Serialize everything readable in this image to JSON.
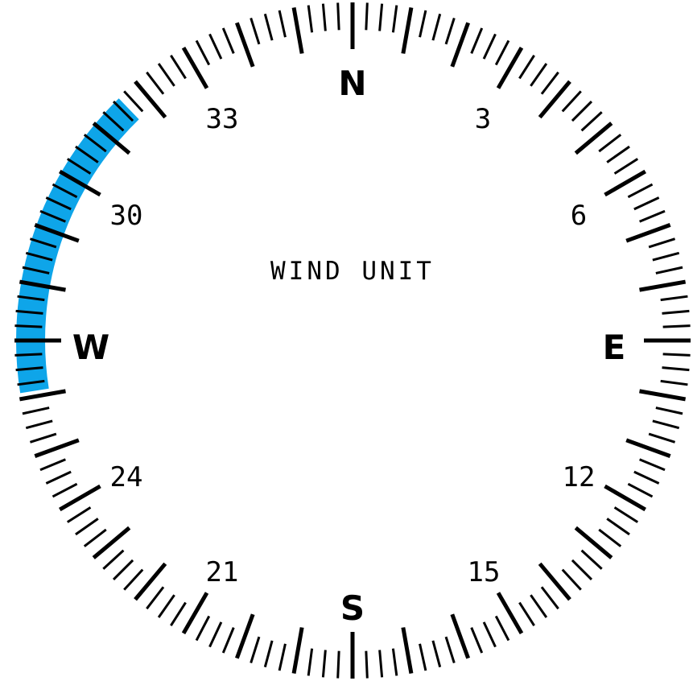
{
  "title": "WIND UNIT",
  "cardinals": {
    "north": "N",
    "east": "E",
    "south": "S",
    "west": "W"
  },
  "heading_labels": {
    "h3": "3",
    "h6": "6",
    "h12": "12",
    "h15": "15",
    "h21": "21",
    "h24": "24",
    "h30": "30",
    "h33": "33"
  },
  "wind_arc": {
    "from_deg": 261,
    "to_deg": 316,
    "color": "#0ea5e9"
  },
  "colors": {
    "ticks": "#000000",
    "background": "#ffffff"
  }
}
